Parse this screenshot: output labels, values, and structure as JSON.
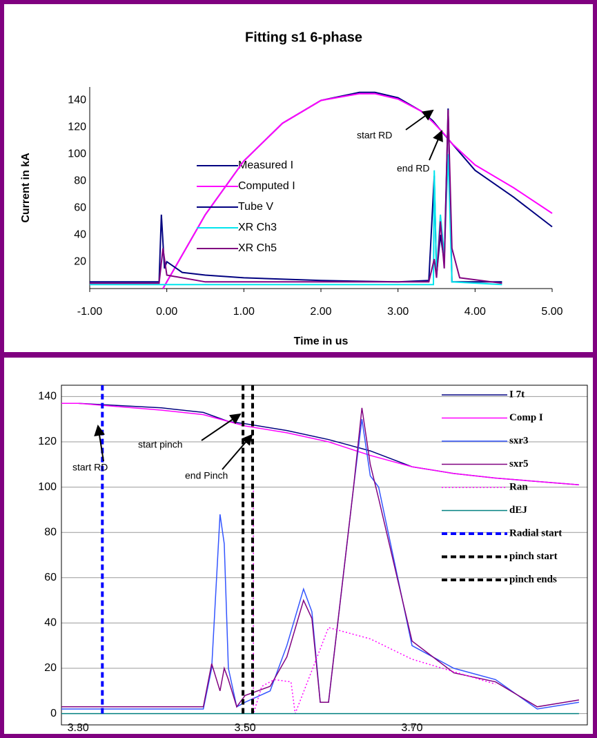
{
  "chart_data": [
    {
      "type": "line",
      "title": "Fitting s1 6-phase",
      "x_label": "Time in us",
      "y_label": "Current in kA",
      "xlim": [
        -1,
        5
      ],
      "ylim": [
        0,
        150
      ],
      "xticks": [
        {
          "value": -1,
          "label": "-1.00"
        },
        {
          "value": 0,
          "label": "0.00"
        },
        {
          "value": 1,
          "label": "1.00"
        },
        {
          "value": 2,
          "label": "2.00"
        },
        {
          "value": 3,
          "label": "3.00"
        },
        {
          "value": 4,
          "label": "4.00"
        },
        {
          "value": 5,
          "label": "5.00"
        }
      ],
      "yticks": [
        20,
        40,
        60,
        80,
        100,
        120,
        140
      ],
      "grid": false,
      "legend": "center-left",
      "annotations": [
        "start RD",
        "end RD"
      ],
      "series": [
        {
          "name": "Measured I",
          "color": "#000080",
          "x": [
            -0.05,
            0,
            0.5,
            1,
            1.5,
            2,
            2.5,
            2.7,
            3,
            3.3,
            3.45,
            3.55,
            3.7,
            4,
            4.5,
            5
          ],
          "values": [
            0,
            5,
            55,
            95,
            123,
            140,
            146,
            146,
            142,
            132,
            125,
            118,
            108,
            88,
            68,
            46
          ]
        },
        {
          "name": "Computed I",
          "color": "#ff00ff",
          "x": [
            -0.05,
            0,
            0.5,
            1,
            1.5,
            2,
            2.5,
            2.7,
            3,
            3.3,
            3.45,
            3.6,
            3.7,
            4,
            4.5,
            5
          ],
          "values": [
            0,
            5,
            55,
            95,
            123,
            140,
            145,
            145,
            141,
            132,
            124,
            115,
            108,
            92,
            75,
            56
          ]
        },
        {
          "name": "Tube V",
          "color": "#000080",
          "x": [
            -1,
            -0.1,
            -0.07,
            -0.03,
            0,
            0.2,
            0.5,
            1,
            2,
            3,
            3.4,
            3.47,
            3.5,
            3.55,
            3.6,
            3.65,
            3.7,
            4.35
          ],
          "values": [
            5,
            5,
            55,
            15,
            20,
            12,
            10,
            8,
            6,
            5,
            6,
            84,
            10,
            40,
            20,
            134,
            5,
            5
          ]
        },
        {
          "name": "XR Ch3",
          "color": "#00e5ee",
          "x": [
            -1,
            3.4,
            3.46,
            3.47,
            3.5,
            3.55,
            3.6,
            3.65,
            3.7,
            4.35
          ],
          "values": [
            3,
            3,
            3,
            88,
            10,
            55,
            25,
            100,
            5,
            3
          ]
        },
        {
          "name": "XR Ch5",
          "color": "#800080",
          "x": [
            -1,
            -0.1,
            -0.05,
            0,
            0.5,
            3.4,
            3.47,
            3.5,
            3.55,
            3.6,
            3.65,
            3.7,
            3.8,
            4.35
          ],
          "values": [
            4,
            4,
            30,
            10,
            5,
            5,
            22,
            8,
            50,
            15,
            133,
            30,
            8,
            4
          ]
        }
      ]
    },
    {
      "type": "line",
      "xlim": [
        3.28,
        3.91
      ],
      "ylim": [
        -5,
        145
      ],
      "xticks": [
        {
          "value": 3.3,
          "label": "3.30"
        },
        {
          "value": 3.5,
          "label": "3.50"
        },
        {
          "value": 3.7,
          "label": "3.70"
        }
      ],
      "yticks": [
        0,
        20,
        40,
        60,
        80,
        100,
        120,
        140
      ],
      "grid": true,
      "legend": "right",
      "annotations": [
        "start pinch",
        "end Pinch",
        "start RD"
      ],
      "series": [
        {
          "name": "I 7t",
          "color": "#000080",
          "x": [
            3.28,
            3.3,
            3.4,
            3.45,
            3.48,
            3.5,
            3.55,
            3.6,
            3.65,
            3.7,
            3.75,
            3.8,
            3.9
          ],
          "values": [
            137,
            137,
            135,
            133,
            129,
            128,
            125,
            121,
            116,
            109,
            106,
            104,
            101
          ]
        },
        {
          "name": "Comp I",
          "color": "#ff00ff",
          "x": [
            3.28,
            3.3,
            3.4,
            3.45,
            3.48,
            3.5,
            3.55,
            3.6,
            3.65,
            3.7,
            3.75,
            3.8,
            3.9
          ],
          "values": [
            137,
            137,
            134,
            132,
            129,
            127,
            124,
            120,
            114,
            109,
            106,
            104,
            101
          ]
        },
        {
          "name": "sxr3",
          "color": "#3355ff",
          "x": [
            3.28,
            3.45,
            3.46,
            3.47,
            3.475,
            3.48,
            3.49,
            3.5,
            3.53,
            3.55,
            3.57,
            3.58,
            3.59,
            3.6,
            3.63,
            3.64,
            3.65,
            3.66,
            3.7,
            3.75,
            3.8,
            3.85,
            3.9
          ],
          "values": [
            2,
            2,
            20,
            88,
            75,
            20,
            3,
            5,
            10,
            30,
            55,
            45,
            5,
            5,
            100,
            130,
            105,
            100,
            30,
            20,
            15,
            2,
            5
          ]
        },
        {
          "name": "sxr5",
          "color": "#800080",
          "x": [
            3.28,
            3.45,
            3.46,
            3.47,
            3.475,
            3.48,
            3.49,
            3.5,
            3.53,
            3.55,
            3.57,
            3.58,
            3.59,
            3.6,
            3.63,
            3.64,
            3.65,
            3.66,
            3.7,
            3.75,
            3.8,
            3.85,
            3.9
          ],
          "values": [
            3,
            3,
            22,
            10,
            20,
            15,
            3,
            8,
            12,
            25,
            50,
            42,
            5,
            5,
            100,
            135,
            110,
            95,
            32,
            18,
            14,
            3,
            6
          ]
        },
        {
          "name": "Ran",
          "color": "#ff00ff",
          "dash": "dotted",
          "x": [
            3.51,
            3.51,
            3.52,
            3.535,
            3.555,
            3.56,
            3.6,
            3.65,
            3.7,
            3.8
          ],
          "values": [
            100,
            0,
            12,
            15,
            14,
            0,
            38,
            33,
            24,
            13
          ]
        },
        {
          "name": "dEJ",
          "color": "#008080",
          "x": [
            3.28,
            3.9
          ],
          "values": [
            0,
            0
          ]
        },
        {
          "name": "Radial start",
          "color": "#0000ff",
          "dash": "dashed",
          "x": [
            3.329,
            3.329
          ],
          "values": [
            0,
            145
          ]
        },
        {
          "name": "pinch start",
          "color": "#000000",
          "dash": "dashed",
          "x": [
            3.4975,
            3.4975
          ],
          "values": [
            0,
            145
          ]
        },
        {
          "name": "pinch ends",
          "color": "#000000",
          "dash": "dashed",
          "x": [
            3.509,
            3.509
          ],
          "values": [
            0,
            145
          ]
        }
      ]
    }
  ]
}
